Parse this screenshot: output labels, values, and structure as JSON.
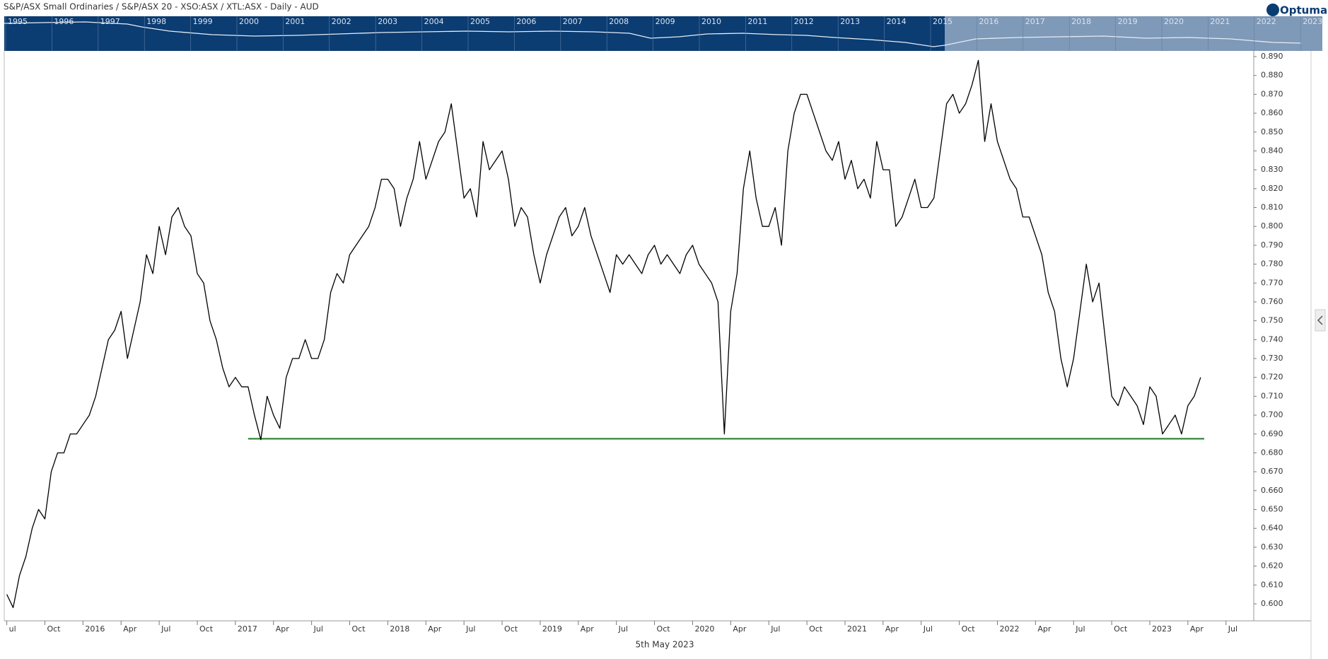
{
  "chart_data": {
    "type": "line",
    "title": "S&P/ASX Small Ordinaries / S&P/ASX 20 - XSO:ASX / XTL:ASX - Daily - AUD",
    "logo": "Optuma",
    "date_label": "5th May 2023",
    "navigator_years": [
      "1995",
      "1996",
      "1997",
      "1998",
      "1999",
      "2000",
      "2001",
      "2002",
      "2003",
      "2004",
      "2005",
      "2006",
      "2007",
      "2008",
      "2009",
      "2010",
      "2011",
      "2012",
      "2013",
      "2014",
      "2015",
      "2016",
      "2017",
      "2018",
      "2019",
      "2020",
      "2021",
      "2022",
      "2023"
    ],
    "color": "#000000",
    "support": {
      "value": 0.6875,
      "color": "#1e7a1e"
    },
    "grid": false,
    "ylim": [
      0.591,
      0.893
    ],
    "yticks": [
      {
        "value": 0.6,
        "label": "0.600"
      },
      {
        "value": 0.61,
        "label": "0.610"
      },
      {
        "value": 0.62,
        "label": "0.620"
      },
      {
        "value": 0.63,
        "label": "0.630"
      },
      {
        "value": 0.64,
        "label": "0.640"
      },
      {
        "value": 0.65,
        "label": "0.650"
      },
      {
        "value": 0.66,
        "label": "0.660"
      },
      {
        "value": 0.67,
        "label": "0.670"
      },
      {
        "value": 0.68,
        "label": "0.680"
      },
      {
        "value": 0.69,
        "label": "0.690"
      },
      {
        "value": 0.7,
        "label": "0.700"
      },
      {
        "value": 0.71,
        "label": "0.710"
      },
      {
        "value": 0.72,
        "label": "0.720"
      },
      {
        "value": 0.73,
        "label": "0.730"
      },
      {
        "value": 0.74,
        "label": "0.740"
      },
      {
        "value": 0.75,
        "label": "0.750"
      },
      {
        "value": 0.76,
        "label": "0.760"
      },
      {
        "value": 0.77,
        "label": "0.770"
      },
      {
        "value": 0.78,
        "label": "0.780"
      },
      {
        "value": 0.79,
        "label": "0.790"
      },
      {
        "value": 0.8,
        "label": "0.800"
      },
      {
        "value": 0.81,
        "label": "0.810"
      },
      {
        "value": 0.82,
        "label": "0.820"
      },
      {
        "value": 0.83,
        "label": "0.830"
      },
      {
        "value": 0.84,
        "label": "0.840"
      },
      {
        "value": 0.85,
        "label": "0.850"
      },
      {
        "value": 0.86,
        "label": "0.860"
      },
      {
        "value": 0.87,
        "label": "0.870"
      },
      {
        "value": 0.88,
        "label": "0.880"
      },
      {
        "value": 0.89,
        "label": "0.890"
      }
    ],
    "categories": [
      "ul",
      null,
      null,
      null,
      null,
      null,
      "Oct",
      null,
      null,
      null,
      null,
      null,
      "2016",
      null,
      null,
      null,
      null,
      null,
      "Apr",
      null,
      null,
      null,
      null,
      null,
      "Jul",
      null,
      null,
      null,
      null,
      null,
      "Oct",
      null,
      null,
      null,
      null,
      null,
      "2017",
      null,
      null,
      null,
      null,
      null,
      "Apr",
      null,
      null,
      null,
      null,
      null,
      "Jul",
      null,
      null,
      null,
      null,
      null,
      "Oct",
      null,
      null,
      null,
      null,
      null,
      "2018",
      null,
      null,
      null,
      null,
      null,
      "Apr",
      null,
      null,
      null,
      null,
      null,
      "Jul",
      null,
      null,
      null,
      null,
      null,
      "Oct",
      null,
      null,
      null,
      null,
      null,
      "2019",
      null,
      null,
      null,
      null,
      null,
      "Apr",
      null,
      null,
      null,
      null,
      null,
      "Jul",
      null,
      null,
      null,
      null,
      null,
      "Oct",
      null,
      null,
      null,
      null,
      null,
      "2020",
      null,
      null,
      null,
      null,
      null,
      "Apr",
      null,
      null,
      null,
      null,
      null,
      "Jul",
      null,
      null,
      null,
      null,
      null,
      "Oct",
      null,
      null,
      null,
      null,
      null,
      "2021",
      null,
      null,
      null,
      null,
      null,
      "Apr",
      null,
      null,
      null,
      null,
      null,
      "Jul",
      null,
      null,
      null,
      null,
      null,
      "Oct",
      null,
      null,
      null,
      null,
      null,
      "2022",
      null,
      null,
      null,
      null,
      null,
      "Apr",
      null,
      null,
      null,
      null,
      null,
      "Jul",
      null,
      null,
      null,
      null,
      null,
      "Oct",
      null,
      null,
      null,
      null,
      null,
      "2023",
      null,
      null,
      null,
      null,
      null,
      "Apr",
      null,
      null,
      null,
      null,
      null,
      "Jul",
      null,
      null,
      null,
      null,
      null,
      null,
      null,
      null,
      null,
      null,
      null,
      null
    ],
    "values": [
      0.605,
      0.598,
      0.615,
      0.625,
      0.64,
      0.65,
      0.645,
      0.67,
      0.68,
      0.68,
      0.69,
      0.69,
      0.695,
      0.7,
      0.71,
      0.725,
      0.74,
      0.745,
      0.755,
      0.73,
      0.745,
      0.76,
      0.785,
      0.775,
      0.8,
      0.785,
      0.805,
      0.81,
      0.8,
      0.795,
      0.775,
      0.77,
      0.75,
      0.74,
      0.725,
      0.715,
      0.72,
      0.715,
      0.715,
      0.7,
      0.687,
      0.71,
      0.7,
      0.693,
      0.72,
      0.73,
      0.73,
      0.74,
      0.73,
      0.73,
      0.74,
      0.765,
      0.775,
      0.77,
      0.785,
      0.79,
      0.795,
      0.8,
      0.81,
      0.825,
      0.825,
      0.82,
      0.8,
      0.815,
      0.825,
      0.845,
      0.825,
      0.835,
      0.845,
      0.85,
      0.865,
      0.84,
      0.815,
      0.82,
      0.805,
      0.845,
      0.83,
      0.835,
      0.84,
      0.825,
      0.8,
      0.81,
      0.805,
      0.785,
      0.77,
      0.785,
      0.795,
      0.805,
      0.81,
      0.795,
      0.8,
      0.81,
      0.795,
      0.785,
      0.775,
      0.765,
      0.785,
      0.78,
      0.785,
      0.78,
      0.775,
      0.785,
      0.79,
      0.78,
      0.785,
      0.78,
      0.775,
      0.785,
      0.79,
      0.78,
      0.775,
      0.77,
      0.76,
      0.69,
      0.755,
      0.775,
      0.82,
      0.84,
      0.815,
      0.8,
      0.8,
      0.81,
      0.79,
      0.84,
      0.86,
      0.87,
      0.87,
      0.86,
      0.85,
      0.84,
      0.835,
      0.845,
      0.825,
      0.835,
      0.82,
      0.825,
      0.815,
      0.845,
      0.83,
      0.83,
      0.8,
      0.805,
      0.815,
      0.825,
      0.81,
      0.81,
      0.815,
      0.84,
      0.865,
      0.87,
      0.86,
      0.865,
      0.875,
      0.888,
      0.845,
      0.865,
      0.845,
      0.835,
      0.825,
      0.82,
      0.805,
      0.805,
      0.795,
      0.785,
      0.765,
      0.755,
      0.73,
      0.715,
      0.73,
      0.755,
      0.78,
      0.76,
      0.77,
      0.74,
      0.71,
      0.705,
      0.715,
      0.71,
      0.705,
      0.695,
      0.715,
      0.71,
      0.69,
      0.695,
      0.7,
      0.69,
      0.705,
      0.71,
      0.72,
      null,
      null,
      null,
      null,
      null,
      null,
      null,
      null,
      null,
      null,
      null,
      null,
      null,
      null,
      null,
      null
    ]
  }
}
